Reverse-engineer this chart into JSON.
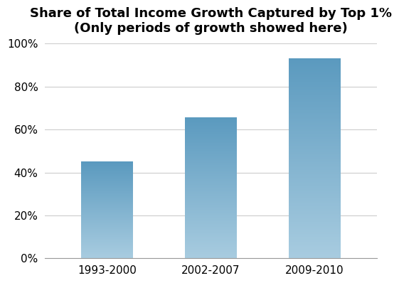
{
  "title_line1": "Share of Total Income Growth Captured by Top 1%",
  "title_line2": "(Only periods of growth showed here)",
  "categories": [
    "1993-2000",
    "2002-2007",
    "2009-2010"
  ],
  "values": [
    0.45,
    0.655,
    0.931
  ],
  "bar_color_top": "#a8cce0",
  "bar_color_bottom": "#5b9abf",
  "ylim": [
    0,
    1.0
  ],
  "yticks": [
    0.0,
    0.2,
    0.4,
    0.6,
    0.8,
    1.0
  ],
  "ytick_labels": [
    "0%",
    "20%",
    "40%",
    "60%",
    "80%",
    "100%"
  ],
  "background_color": "#ffffff",
  "grid_color": "#cccccc",
  "title_fontsize": 13,
  "tick_fontsize": 11,
  "bar_width": 0.5
}
